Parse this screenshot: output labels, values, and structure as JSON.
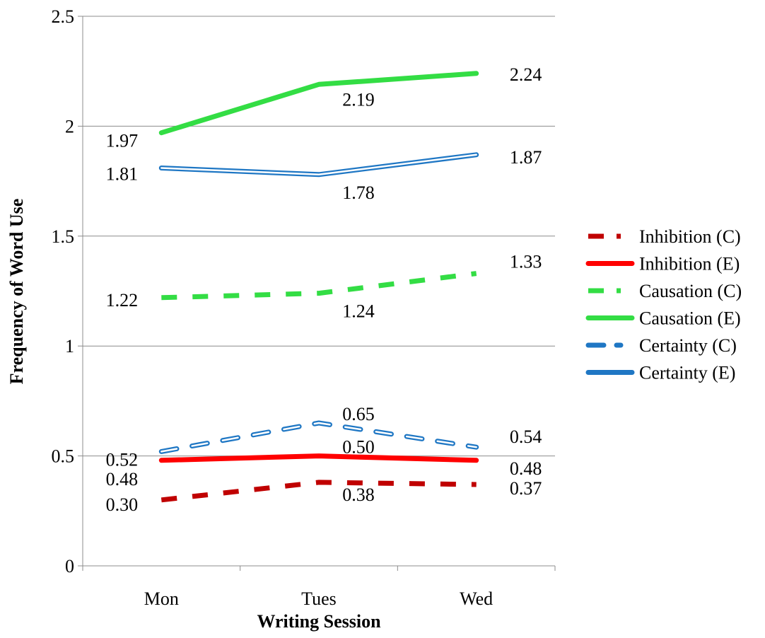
{
  "chart_data": {
    "type": "line",
    "title": "",
    "xlabel": "Writing Session",
    "ylabel": "Frequency of Word Use",
    "categories": [
      "Mon",
      "Tues",
      "Wed"
    ],
    "ylim": [
      0,
      2.5
    ],
    "yticks": [
      "0",
      "0.5",
      "1",
      "1.5",
      "2",
      "2.5"
    ],
    "grid": "horizontal",
    "legend_position": "right",
    "series": [
      {
        "name": "Inhibition (C)",
        "values": [
          0.3,
          0.38,
          0.37
        ],
        "labels": [
          "0.30",
          "0.38",
          "0.37"
        ],
        "color": "#c00000",
        "style": "dashed"
      },
      {
        "name": "Inhibition (E)",
        "values": [
          0.48,
          0.5,
          0.48
        ],
        "labels": [
          "0.48",
          "0.50",
          "0.48"
        ],
        "color": "#ff0000",
        "style": "solid"
      },
      {
        "name": "Causation (C)",
        "values": [
          1.22,
          1.24,
          1.33
        ],
        "labels": [
          "1.22",
          "1.24",
          "1.33"
        ],
        "color": "#33dd44",
        "style": "dashed"
      },
      {
        "name": "Causation (E)",
        "values": [
          1.97,
          2.19,
          2.24
        ],
        "labels": [
          "1.97",
          "2.19",
          "2.24"
        ],
        "color": "#33dd44",
        "style": "solid"
      },
      {
        "name": "Certainty (C)",
        "values": [
          0.52,
          0.65,
          0.54
        ],
        "labels": [
          "0.52",
          "0.65",
          "0.54"
        ],
        "color": "#1f77c4",
        "style": "dashed-double"
      },
      {
        "name": "Certainty (E)",
        "values": [
          1.81,
          1.78,
          1.87
        ],
        "labels": [
          "1.81",
          "1.78",
          "1.87"
        ],
        "color": "#1f77c4",
        "style": "double"
      }
    ]
  }
}
